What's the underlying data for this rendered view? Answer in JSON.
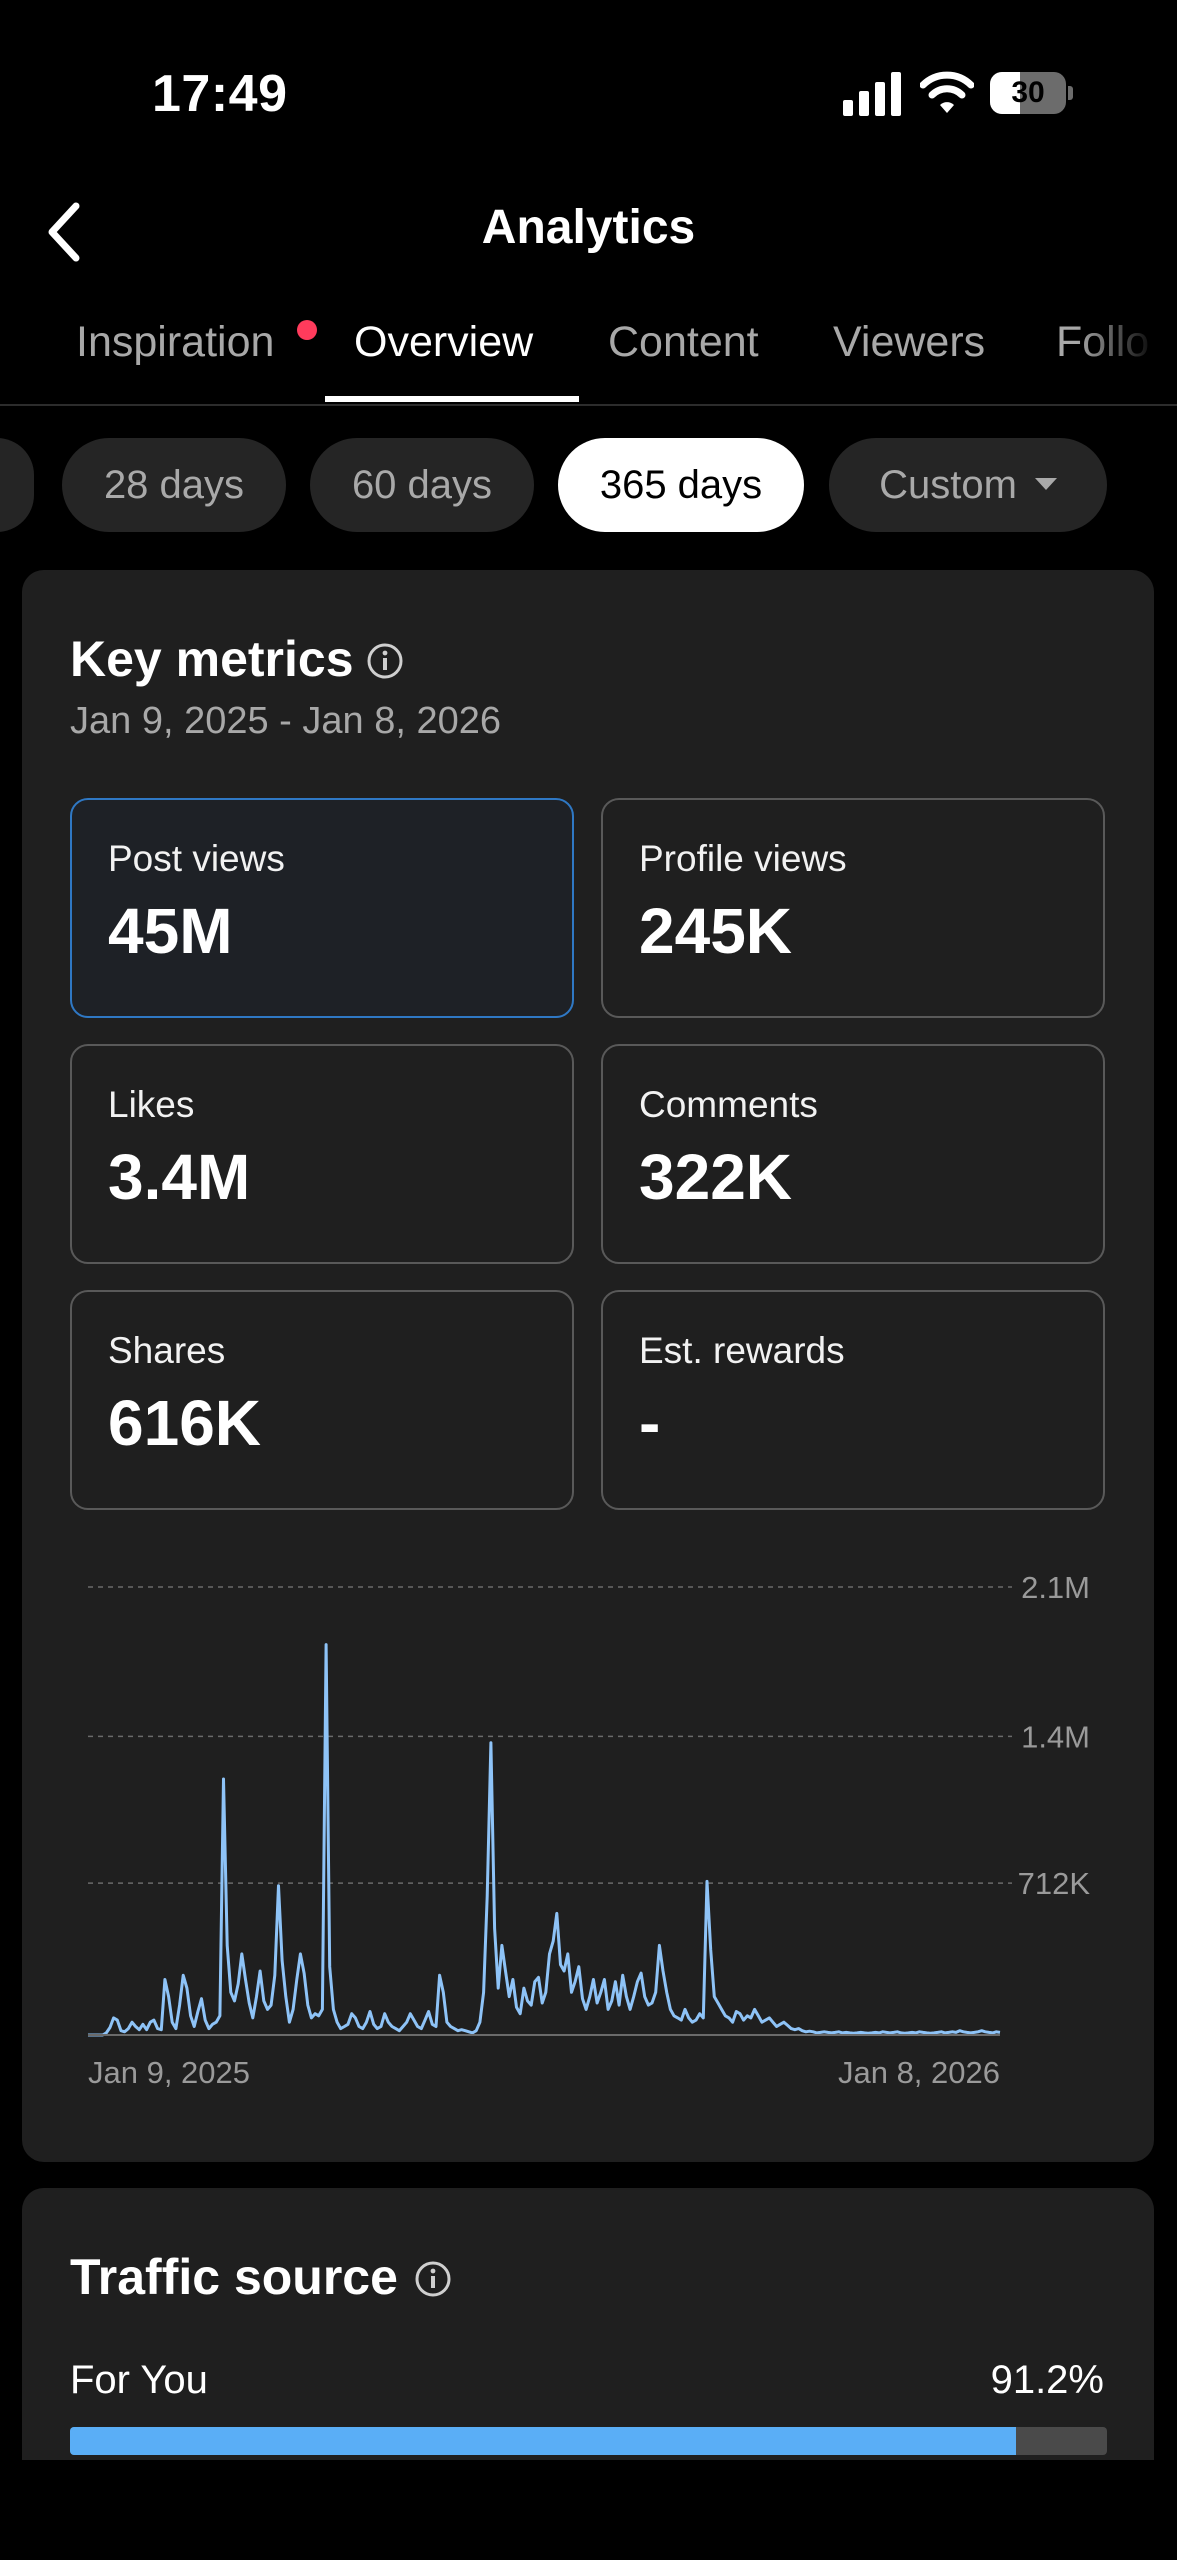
{
  "status_bar": {
    "time": "17:49",
    "battery": "30"
  },
  "nav": {
    "title": "Analytics"
  },
  "tabs": [
    {
      "label": "Inspiration",
      "active": false,
      "has_dot": true
    },
    {
      "label": "Overview",
      "active": true,
      "has_dot": false
    },
    {
      "label": "Content",
      "active": false,
      "has_dot": false
    },
    {
      "label": "Viewers",
      "active": false,
      "has_dot": false
    },
    {
      "label": "Follo",
      "active": false,
      "has_dot": false
    }
  ],
  "date_ranges": [
    {
      "label": "28 days",
      "selected": false
    },
    {
      "label": "60 days",
      "selected": false
    },
    {
      "label": "365 days",
      "selected": true
    },
    {
      "label": "Custom",
      "selected": false,
      "dropdown": true
    }
  ],
  "key_metrics": {
    "title": "Key metrics",
    "date_range": "Jan 9, 2025 - Jan 8, 2026",
    "items": [
      {
        "label": "Post views",
        "value": "45M",
        "selected": true
      },
      {
        "label": "Profile views",
        "value": "245K",
        "selected": false
      },
      {
        "label": "Likes",
        "value": "3.4M",
        "selected": false
      },
      {
        "label": "Comments",
        "value": "322K",
        "selected": false
      },
      {
        "label": "Shares",
        "value": "616K",
        "selected": false
      },
      {
        "label": "Est. rewards",
        "value": "-",
        "selected": false
      }
    ]
  },
  "chart_data": {
    "type": "line",
    "title": "",
    "xlabel": "",
    "ylabel": "",
    "x_start_label": "Jan 9, 2025",
    "x_end_label": "Jan 8, 2026",
    "y_ticks": [
      "712K",
      "1.4M",
      "2.1M"
    ],
    "ylim": [
      0,
      2100000
    ],
    "grid": true,
    "line_color": "#8ec3f7",
    "series": [
      {
        "values": [
          0,
          0,
          0,
          0,
          0,
          10000,
          35000,
          80000,
          70000,
          20000,
          15000,
          30000,
          60000,
          40000,
          25000,
          50000,
          25000,
          60000,
          70000,
          30000,
          25000,
          260000,
          180000,
          60000,
          30000,
          140000,
          280000,
          220000,
          90000,
          40000,
          110000,
          170000,
          70000,
          30000,
          50000,
          60000,
          90000,
          1200000,
          420000,
          200000,
          160000,
          240000,
          380000,
          260000,
          150000,
          80000,
          180000,
          300000,
          160000,
          120000,
          140000,
          280000,
          700000,
          350000,
          180000,
          60000,
          120000,
          260000,
          380000,
          290000,
          140000,
          80000,
          100000,
          90000,
          120000,
          1830000,
          320000,
          120000,
          60000,
          30000,
          40000,
          50000,
          100000,
          80000,
          40000,
          30000,
          60000,
          110000,
          50000,
          30000,
          40000,
          100000,
          60000,
          40000,
          30000,
          20000,
          40000,
          60000,
          100000,
          70000,
          40000,
          30000,
          70000,
          110000,
          50000,
          40000,
          280000,
          200000,
          60000,
          40000,
          30000,
          20000,
          25000,
          20000,
          15000,
          10000,
          20000,
          60000,
          200000,
          650000,
          1370000,
          500000,
          220000,
          420000,
          300000,
          180000,
          260000,
          130000,
          100000,
          220000,
          160000,
          140000,
          250000,
          270000,
          150000,
          200000,
          380000,
          440000,
          570000,
          330000,
          300000,
          380000,
          200000,
          250000,
          320000,
          170000,
          120000,
          180000,
          260000,
          150000,
          200000,
          260000,
          120000,
          160000,
          250000,
          140000,
          280000,
          180000,
          120000,
          180000,
          250000,
          290000,
          180000,
          140000,
          150000,
          200000,
          420000,
          300000,
          200000,
          120000,
          90000,
          80000,
          70000,
          120000,
          80000,
          60000,
          70000,
          100000,
          80000,
          720000,
          400000,
          180000,
          150000,
          120000,
          90000,
          80000,
          60000,
          110000,
          100000,
          70000,
          90000,
          80000,
          120000,
          90000,
          60000,
          70000,
          80000,
          60000,
          40000,
          50000,
          60000,
          45000,
          30000,
          25000,
          30000,
          20000,
          15000,
          18000,
          15000,
          10000,
          12000,
          15000,
          12000,
          10000,
          12000,
          15000,
          10000,
          12000,
          10000,
          8000,
          10000,
          12000,
          10000,
          8000,
          10000,
          12000,
          10000,
          15000,
          12000,
          10000,
          12000,
          15000,
          10000,
          8000,
          10000,
          12000,
          10000,
          15000,
          12000,
          10000,
          8000,
          10000,
          12000,
          15000,
          10000,
          12000,
          15000,
          12000,
          20000,
          15000,
          12000,
          10000,
          12000,
          15000,
          20000,
          15000,
          12000,
          10000,
          15000,
          12000
        ]
      }
    ]
  },
  "traffic_source": {
    "title": "Traffic source",
    "items": [
      {
        "label": "For You",
        "percent_label": "91.2%",
        "fraction": 0.912
      }
    ]
  },
  "colors": {
    "accent_blue": "#5aaef6",
    "selected_border": "#2f78c4",
    "notification_dot": "#ff3b5c",
    "card_bg": "#1f1f1f"
  }
}
